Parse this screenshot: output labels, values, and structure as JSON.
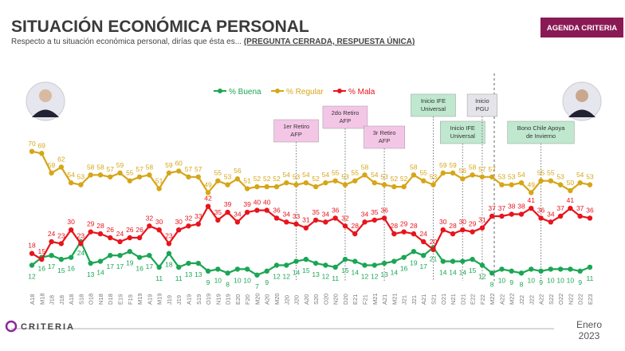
{
  "chart_data": {
    "type": "line",
    "title": "SITUACIÓN ECONÓMICA PERSONAL",
    "subtitle": "Respecto a tu situación económica personal, dirías que ésta es...",
    "subtitle_note": "(PREGUNTA CERRADA, RESPUESTA ÚNICA)",
    "badge": "AGENDA CRITERIA",
    "brand": "CRITERIA",
    "date_label": [
      "Enero",
      "2023"
    ],
    "categories": [
      "A18",
      "M18",
      "J18",
      "J18",
      "A18",
      "S18",
      "O18",
      "N18",
      "D18",
      "E19",
      "F19",
      "M19",
      "A19",
      "M19",
      "J19",
      "J19",
      "A19",
      "S19",
      "O19",
      "N19",
      "D19",
      "E20",
      "F20",
      "M20",
      "A20",
      "M20",
      "J20",
      "J20",
      "A20",
      "S20",
      "O20",
      "N20",
      "D20",
      "E21",
      "F21",
      "M21",
      "A21",
      "M21",
      "J21",
      "J21",
      "A21",
      "S21",
      "O21",
      "N21",
      "D21",
      "E22",
      "F22",
      "M22",
      "A22",
      "M22",
      "J22",
      "J22",
      "A22",
      "S22",
      "O22",
      "N22",
      "D22",
      "E23"
    ],
    "series": [
      {
        "name": "% Buena",
        "color": "#1aa653",
        "values": [
          12,
          16,
          17,
          15,
          16,
          24,
          13,
          14,
          17,
          17,
          19,
          16,
          17,
          11,
          18,
          11,
          13,
          13,
          9,
          10,
          8,
          10,
          10,
          7,
          9,
          12,
          12,
          14,
          15,
          13,
          12,
          11,
          15,
          14,
          12,
          12,
          13,
          14,
          16,
          19,
          17,
          21,
          14,
          14,
          14,
          15,
          12,
          8,
          10,
          9,
          8,
          10,
          9,
          10,
          10,
          10,
          9,
          11
        ]
      },
      {
        "name": "% Regular",
        "color": "#d6a618",
        "values": [
          70,
          69,
          59,
          62,
          54,
          53,
          58,
          58,
          57,
          59,
          55,
          57,
          58,
          51,
          59,
          60,
          57,
          57,
          49,
          55,
          53,
          56,
          51,
          52,
          52,
          52,
          54,
          53,
          54,
          52,
          54,
          55,
          53,
          55,
          58,
          54,
          53,
          52,
          52,
          58,
          55,
          53,
          59,
          59,
          56,
          58,
          57,
          57,
          53,
          53,
          54,
          49,
          55,
          55,
          53,
          50,
          54,
          53
        ]
      },
      {
        "name": "% Mala",
        "color": "#e8141c",
        "values": [
          18,
          15,
          24,
          23,
          30,
          23,
          29,
          28,
          26,
          24,
          26,
          26,
          32,
          30,
          23,
          30,
          32,
          33,
          42,
          35,
          39,
          34,
          39,
          40,
          40,
          36,
          34,
          33,
          31,
          35,
          34,
          36,
          32,
          28,
          34,
          35,
          36,
          28,
          29,
          28,
          24,
          20,
          30,
          28,
          30,
          29,
          31,
          37,
          37,
          38,
          38,
          41,
          36,
          34,
          37,
          41,
          37,
          36
        ]
      }
    ],
    "annotations": [
      [
        "1er Retiro",
        "AFP"
      ],
      [
        "2do Retiro",
        "AFP"
      ],
      [
        "3r Retiro",
        "AFP"
      ],
      [
        "Inicio IFE",
        "Universal"
      ],
      [
        "Inicio IFE",
        "Universal"
      ],
      [
        "Inicio",
        "PGU"
      ],
      [
        "Bono Chile Apoya",
        "de Invierno"
      ]
    ]
  }
}
